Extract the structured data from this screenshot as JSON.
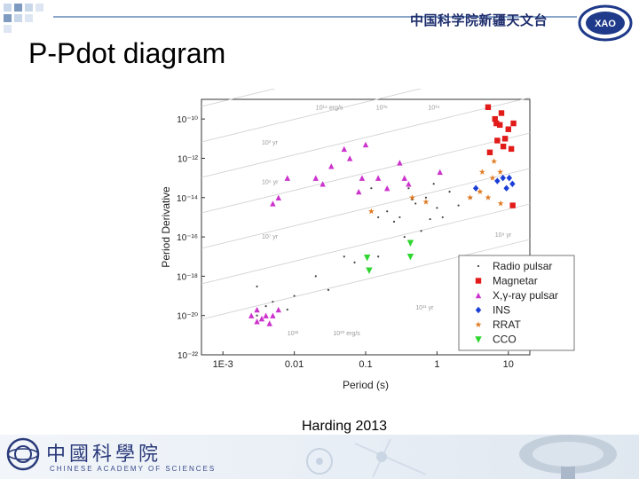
{
  "header": {
    "org_title": "中国科学院新疆天文台",
    "logo_text": "XAO",
    "page_title": "P-Pdot diagram"
  },
  "caption": "Harding 2013",
  "footer": {
    "cas_name_zh": "中國科學院",
    "cas_name_en": "CHINESE ACADEMY OF SCIENCES"
  },
  "colors": {
    "header_text": "#1f2f6e",
    "radio": "#444444",
    "magnetar": "#e21a1a",
    "xray": "#cc33cc",
    "ins": "#1a3ed6",
    "rrat": "#e07a22",
    "cco": "#2fd62f"
  },
  "chart_data": {
    "type": "scatter",
    "xlabel": "Period (s)",
    "ylabel": "Period Derivative",
    "x_scale": "log",
    "y_scale": "log",
    "xlim": [
      0.0005,
      20
    ],
    "ylim": [
      1e-22,
      1e-09
    ],
    "x_ticks": [
      {
        "v": 0.001,
        "label": "1E-3"
      },
      {
        "v": 0.01,
        "label": "0.01"
      },
      {
        "v": 0.1,
        "label": "0.1"
      },
      {
        "v": 1,
        "label": "1"
      },
      {
        "v": 10,
        "label": "10"
      }
    ],
    "y_ticks": [
      {
        "v": 1e-10,
        "label": "10⁻¹⁰"
      },
      {
        "v": 1e-12,
        "label": "10⁻¹²"
      },
      {
        "v": 1e-14,
        "label": "10⁻¹⁴"
      },
      {
        "v": 1e-16,
        "label": "10⁻¹⁶"
      },
      {
        "v": 1e-18,
        "label": "10⁻¹⁸"
      },
      {
        "v": 1e-20,
        "label": "10⁻²⁰"
      },
      {
        "v": 1e-22,
        "label": "10⁻²²"
      }
    ],
    "legend_position": "right",
    "series": [
      {
        "name": "Radio pulsar",
        "marker": "dot",
        "color": "#444444",
        "points": [
          [
            0.2,
            2e-15
          ],
          [
            0.3,
            1e-15
          ],
          [
            0.5,
            5e-15
          ],
          [
            0.7,
            1e-14
          ],
          [
            1.0,
            3e-15
          ],
          [
            0.4,
            3e-14
          ],
          [
            0.15,
            1e-15
          ],
          [
            0.8,
            8e-16
          ],
          [
            1.5,
            2e-14
          ],
          [
            2.0,
            4e-15
          ],
          [
            0.25,
            6e-16
          ],
          [
            0.6,
            2e-16
          ],
          [
            0.35,
            1e-16
          ],
          [
            1.2,
            1e-15
          ],
          [
            0.45,
            8e-15
          ],
          [
            0.9,
            5e-14
          ],
          [
            0.12,
            3e-14
          ],
          [
            3.0,
            1e-14
          ],
          [
            0.003,
            1e-20
          ],
          [
            0.005,
            5e-20
          ],
          [
            0.004,
            3e-20
          ],
          [
            0.01,
            1e-19
          ],
          [
            0.02,
            1e-18
          ],
          [
            0.05,
            1e-17
          ],
          [
            0.003,
            3e-19
          ],
          [
            0.008,
            2e-20
          ],
          [
            0.03,
            2e-19
          ],
          [
            0.15,
            1e-17
          ],
          [
            0.07,
            5e-18
          ]
        ]
      },
      {
        "name": "Magnetar",
        "marker": "square",
        "color": "#e21a1a",
        "points": [
          [
            5.2,
            4e-10
          ],
          [
            6.5,
            1e-10
          ],
          [
            7.6,
            5e-11
          ],
          [
            8.0,
            2e-10
          ],
          [
            10.0,
            3e-11
          ],
          [
            11.8,
            6e-11
          ],
          [
            9.0,
            1e-11
          ],
          [
            7.0,
            8e-12
          ],
          [
            5.5,
            2e-12
          ],
          [
            8.5,
            4e-12
          ],
          [
            11.0,
            3e-12
          ],
          [
            11.5,
            4e-15
          ],
          [
            6.8,
            6e-11
          ]
        ]
      },
      {
        "name": "X,γ-ray pulsar",
        "marker": "triangle",
        "color": "#cc33cc",
        "points": [
          [
            0.033,
            4e-13
          ],
          [
            0.089,
            1e-13
          ],
          [
            0.15,
            1e-13
          ],
          [
            0.05,
            3e-12
          ],
          [
            0.06,
            1e-12
          ],
          [
            0.1,
            5e-12
          ],
          [
            0.08,
            2e-14
          ],
          [
            0.02,
            1e-13
          ],
          [
            0.2,
            3e-14
          ],
          [
            0.35,
            1e-13
          ],
          [
            0.4,
            5e-14
          ],
          [
            0.006,
            1e-14
          ],
          [
            0.008,
            1e-13
          ],
          [
            0.005,
            5e-15
          ],
          [
            0.025,
            5e-14
          ],
          [
            0.3,
            6e-13
          ],
          [
            1.1,
            2e-13
          ],
          [
            0.004,
            1e-20
          ],
          [
            0.003,
            5e-21
          ],
          [
            0.0025,
            1e-20
          ],
          [
            0.003,
            2e-20
          ],
          [
            0.005,
            1e-20
          ],
          [
            0.0045,
            4e-21
          ],
          [
            0.006,
            2e-20
          ],
          [
            0.0035,
            7e-21
          ]
        ]
      },
      {
        "name": "INS",
        "marker": "diamond",
        "color": "#1a3ed6",
        "points": [
          [
            3.5,
            3e-14
          ],
          [
            7.0,
            7e-14
          ],
          [
            8.4,
            1e-13
          ],
          [
            10.3,
            1e-13
          ],
          [
            11.4,
            5e-14
          ],
          [
            9.4,
            3e-14
          ]
        ]
      },
      {
        "name": "RRAT",
        "marker": "star",
        "color": "#e07a22",
        "points": [
          [
            4.3,
            2e-13
          ],
          [
            6.0,
            1e-13
          ],
          [
            7.7,
            2e-13
          ],
          [
            2.9,
            1e-14
          ],
          [
            5.2,
            1e-14
          ],
          [
            0.7,
            6e-15
          ],
          [
            0.45,
            1e-14
          ],
          [
            0.12,
            2e-15
          ],
          [
            7.8,
            5e-15
          ],
          [
            4.0,
            2e-14
          ],
          [
            6.3,
            7e-13
          ]
        ]
      },
      {
        "name": "CCO",
        "marker": "triangle-down",
        "color": "#2fd62f",
        "points": [
          [
            0.105,
            9e-18
          ],
          [
            0.112,
            2e-18
          ],
          [
            0.424,
            5e-17
          ],
          [
            0.424,
            1e-17
          ]
        ]
      }
    ],
    "annotations": [
      {
        "text": "10¹⁴ erg/s",
        "x": 0.02,
        "y": 3e-10
      },
      {
        "text": "10³⁶",
        "x": 0.14,
        "y": 3e-10
      },
      {
        "text": "10³⁴",
        "x": 0.75,
        "y": 3e-10
      },
      {
        "text": "10³ yr",
        "x": 0.0035,
        "y": 5e-12
      },
      {
        "text": "10⁵ yr",
        "x": 0.0035,
        "y": 5e-14
      },
      {
        "text": "10⁷ yr",
        "x": 0.0035,
        "y": 8e-17
      },
      {
        "text": "10³² ",
        "x": 0.008,
        "y": 1e-21
      },
      {
        "text": "10³⁰ erg/s",
        "x": 0.035,
        "y": 1e-21
      },
      {
        "text": "10⁹ yr",
        "x": 6.5,
        "y": 1e-16
      },
      {
        "text": "10¹¹ yr",
        "x": 0.5,
        "y": 2e-20
      }
    ]
  }
}
